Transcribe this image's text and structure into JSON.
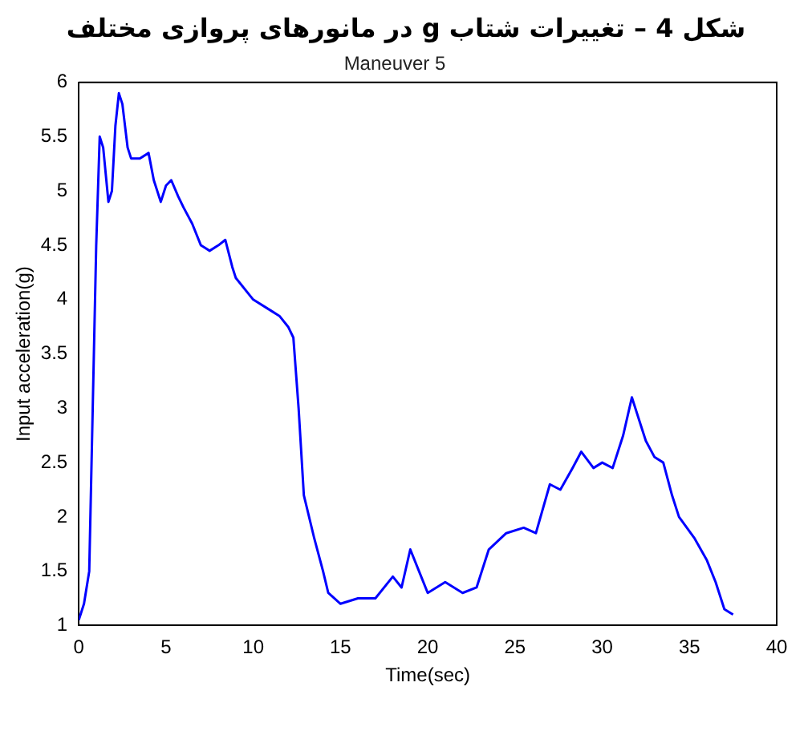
{
  "chart_data": {
    "type": "line",
    "title": "شکل 4 – تغییرات شتاب g در مانورهای پروازی مختلف",
    "subtitle": "Maneuver 5",
    "xlabel": "Time(sec)",
    "ylabel": "Input acceleration(g)",
    "x": [
      0,
      0.3,
      0.6,
      0.8,
      1.0,
      1.2,
      1.4,
      1.7,
      1.9,
      2.1,
      2.3,
      2.5,
      2.8,
      3.0,
      3.5,
      4.0,
      4.3,
      4.7,
      5.0,
      5.3,
      5.7,
      6.0,
      6.5,
      7.0,
      7.5,
      8.0,
      8.4,
      8.8,
      9.0,
      10.0,
      11.0,
      11.5,
      12.0,
      12.3,
      12.6,
      12.9,
      13.5,
      14.0,
      14.3,
      15.0,
      16.0,
      17.0,
      18.0,
      18.5,
      19.0,
      19.5,
      20.0,
      21.0,
      22.0,
      22.8,
      23.5,
      24.5,
      25.5,
      26.2,
      27.0,
      27.6,
      28.3,
      28.8,
      29.5,
      30.0,
      30.6,
      31.2,
      31.7,
      32.2,
      32.5,
      33.0,
      33.5,
      34.0,
      34.4,
      35.3,
      36.0,
      36.5,
      37.0,
      37.5
    ],
    "series": [
      {
        "color": "#0000ff",
        "values": [
          1.05,
          1.2,
          1.5,
          3.0,
          4.5,
          5.5,
          5.4,
          4.9,
          5.0,
          5.6,
          5.9,
          5.8,
          5.4,
          5.3,
          5.3,
          5.35,
          5.1,
          4.9,
          5.05,
          5.1,
          4.95,
          4.85,
          4.7,
          4.5,
          4.45,
          4.5,
          4.55,
          4.3,
          4.2,
          4.0,
          3.9,
          3.85,
          3.75,
          3.65,
          3.0,
          2.2,
          1.8,
          1.5,
          1.3,
          1.2,
          1.25,
          1.25,
          1.45,
          1.35,
          1.7,
          1.5,
          1.3,
          1.4,
          1.3,
          1.35,
          1.7,
          1.85,
          1.9,
          1.85,
          2.3,
          2.25,
          2.45,
          2.6,
          2.45,
          2.5,
          2.45,
          2.75,
          3.1,
          2.85,
          2.7,
          2.55,
          2.5,
          2.2,
          2.0,
          1.8,
          1.6,
          1.4,
          1.15,
          1.1
        ]
      }
    ],
    "xlim": [
      0,
      40
    ],
    "xticks": [
      0,
      5,
      10,
      15,
      20,
      25,
      30,
      35,
      40
    ],
    "ylim": [
      1,
      6
    ],
    "yticks": [
      1,
      1.5,
      2,
      2.5,
      3,
      3.5,
      4,
      4.5,
      5,
      5.5,
      6
    ],
    "grid": false,
    "legend": false,
    "marker": "none",
    "line_style": "solid"
  }
}
